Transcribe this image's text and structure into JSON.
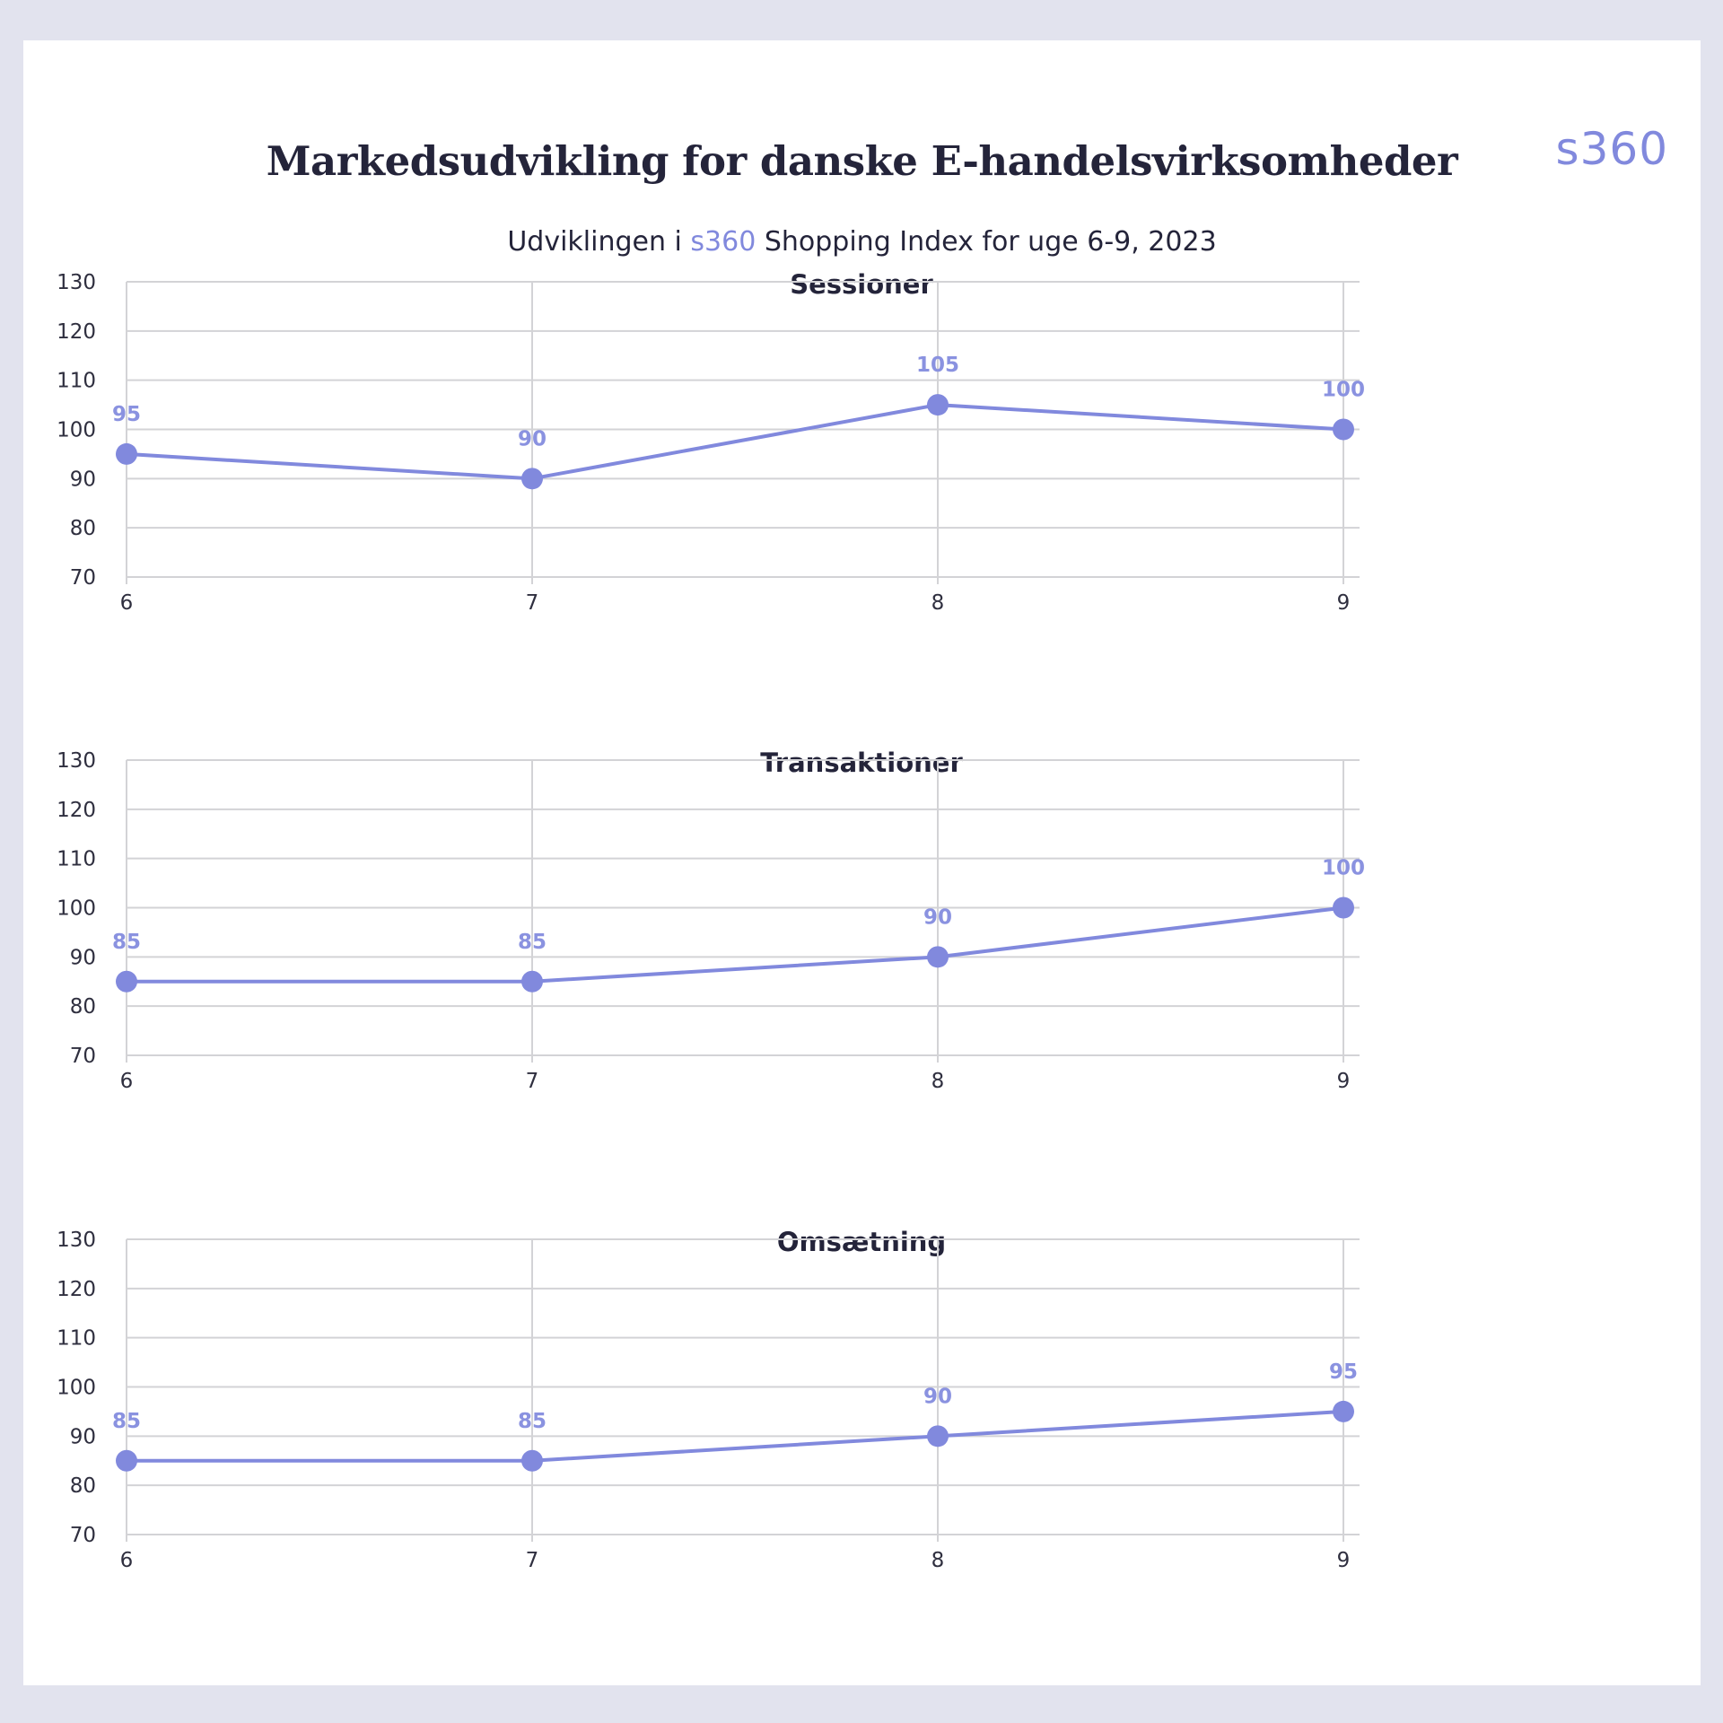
{
  "header": {
    "title": "Markedsudvikling for danske E-handelsvirksomheder",
    "logo": "s360",
    "subtitle_prefix": "Udviklingen i ",
    "subtitle_accent": "s360",
    "subtitle_suffix": " Shopping Index for uge 6-9, 2023"
  },
  "colors": {
    "accent": "#8189dd",
    "line": "#8189dd",
    "grid": "#d3d3d6",
    "text": "#24243a"
  },
  "chart_data": [
    {
      "type": "line",
      "title": "Sessioner",
      "x": [
        "6",
        "7",
        "8",
        "9"
      ],
      "values": [
        95,
        90,
        105,
        100
      ],
      "data_labels": [
        "95",
        "90",
        "105",
        "100"
      ],
      "ylim": [
        70,
        130
      ],
      "yticks": [
        "70",
        "80",
        "90",
        "100",
        "110",
        "120",
        "130"
      ],
      "grid": true
    },
    {
      "type": "line",
      "title": "Transaktioner",
      "x": [
        "6",
        "7",
        "8",
        "9"
      ],
      "values": [
        85,
        85,
        90,
        100
      ],
      "data_labels": [
        "85",
        "85",
        "90",
        "100"
      ],
      "ylim": [
        70,
        130
      ],
      "yticks": [
        "70",
        "80",
        "90",
        "100",
        "110",
        "120",
        "130"
      ],
      "grid": true
    },
    {
      "type": "line",
      "title": "Omsætning",
      "x": [
        "6",
        "7",
        "8",
        "9"
      ],
      "values": [
        85,
        85,
        90,
        95
      ],
      "data_labels": [
        "85",
        "85",
        "90",
        "95"
      ],
      "ylim": [
        70,
        130
      ],
      "yticks": [
        "70",
        "80",
        "90",
        "100",
        "110",
        "120",
        "130"
      ],
      "grid": true
    }
  ]
}
